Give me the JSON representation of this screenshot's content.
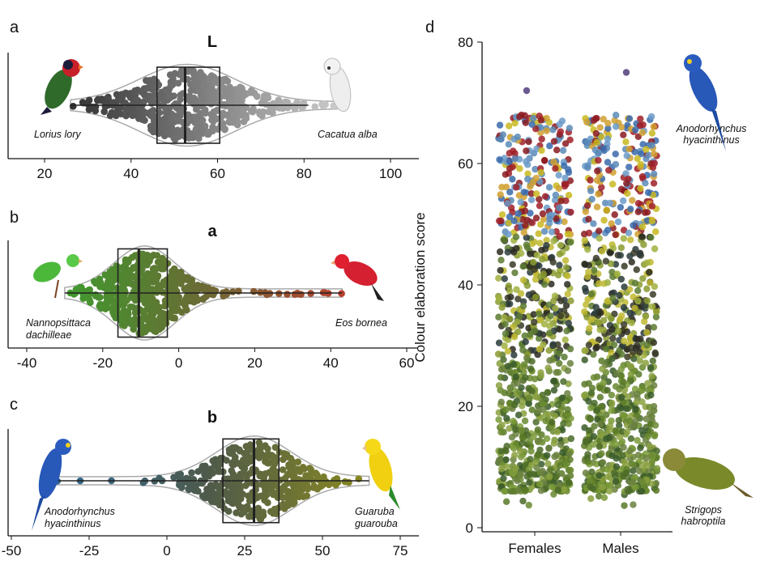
{
  "chart_data": [
    {
      "panel": "a",
      "title": "L",
      "type": "violin-box-beeswarm",
      "xlim": [
        13,
        107
      ],
      "xticks": [
        "20",
        "40",
        "60",
        "80",
        "100"
      ],
      "xtick_values": [
        20,
        40,
        60,
        80,
        100
      ],
      "stats": {
        "min": 26,
        "q1": 46,
        "median": 52.5,
        "q3": 60.5,
        "whisker_high": 81,
        "max": 90,
        "mean": 53,
        "sd": 11
      },
      "colors": [
        "#333333",
        "#d0d0d0"
      ],
      "annotations": {
        "left": "Lorius lory",
        "right": "Cacatua alba"
      }
    },
    {
      "panel": "b",
      "title": "a",
      "type": "violin-box-beeswarm",
      "xlim": [
        -44,
        62
      ],
      "xticks": [
        "-40",
        "-20",
        "0",
        "20",
        "40",
        "60"
      ],
      "xtick_values": [
        -40,
        -20,
        0,
        20,
        40,
        60
      ],
      "stats": {
        "min": -30,
        "q1": -16,
        "median": -10.5,
        "q3": -3,
        "whisker_high": 43,
        "max": 43,
        "mean": -9,
        "sd": 8
      },
      "colors": [
        "#3f9a2e",
        "#6b6a35",
        "#b8402e"
      ],
      "annotations": {
        "left": [
          "Nannopsittaca",
          "dachilleae"
        ],
        "right": "Eos bornea"
      }
    },
    {
      "panel": "c",
      "title": "b",
      "type": "violin-box-beeswarm",
      "xlim": [
        -50,
        80
      ],
      "xticks": [
        "-50",
        "-25",
        "0",
        "25",
        "50",
        "75"
      ],
      "xtick_values": [
        -50,
        -25,
        0,
        25,
        50,
        75
      ],
      "stats": {
        "min": -38,
        "q1": 18,
        "median": 28,
        "q3": 36,
        "whisker_high": 65,
        "max": 65,
        "mean": 28,
        "sd": 12
      },
      "colors": [
        "#2d6a9a",
        "#4f5a4a",
        "#8a8a20"
      ],
      "annotations": {
        "left": [
          "Anodorhynchus",
          "hyacinthinus"
        ],
        "right": [
          "Guaruba",
          "guarouba"
        ]
      }
    },
    {
      "panel": "d",
      "type": "jitter-scatter",
      "ylabel": "Colour elaboration score",
      "ylim": [
        0,
        80
      ],
      "yticks": [
        "0",
        "20",
        "40",
        "60",
        "80"
      ],
      "ytick_values": [
        0,
        20,
        40,
        60,
        80
      ],
      "categories": [
        "Females",
        "Males"
      ],
      "series": [
        {
          "name": "Females",
          "min": 3,
          "max": 72
        },
        {
          "name": "Males",
          "min": 3,
          "max": 75
        }
      ],
      "annotations": {
        "top": [
          "Anodorhynchus",
          "hyacinthinus"
        ],
        "bottom": [
          "Strigops",
          "habroptila"
        ]
      }
    }
  ],
  "panel_labels": [
    "a",
    "b",
    "c",
    "d"
  ]
}
